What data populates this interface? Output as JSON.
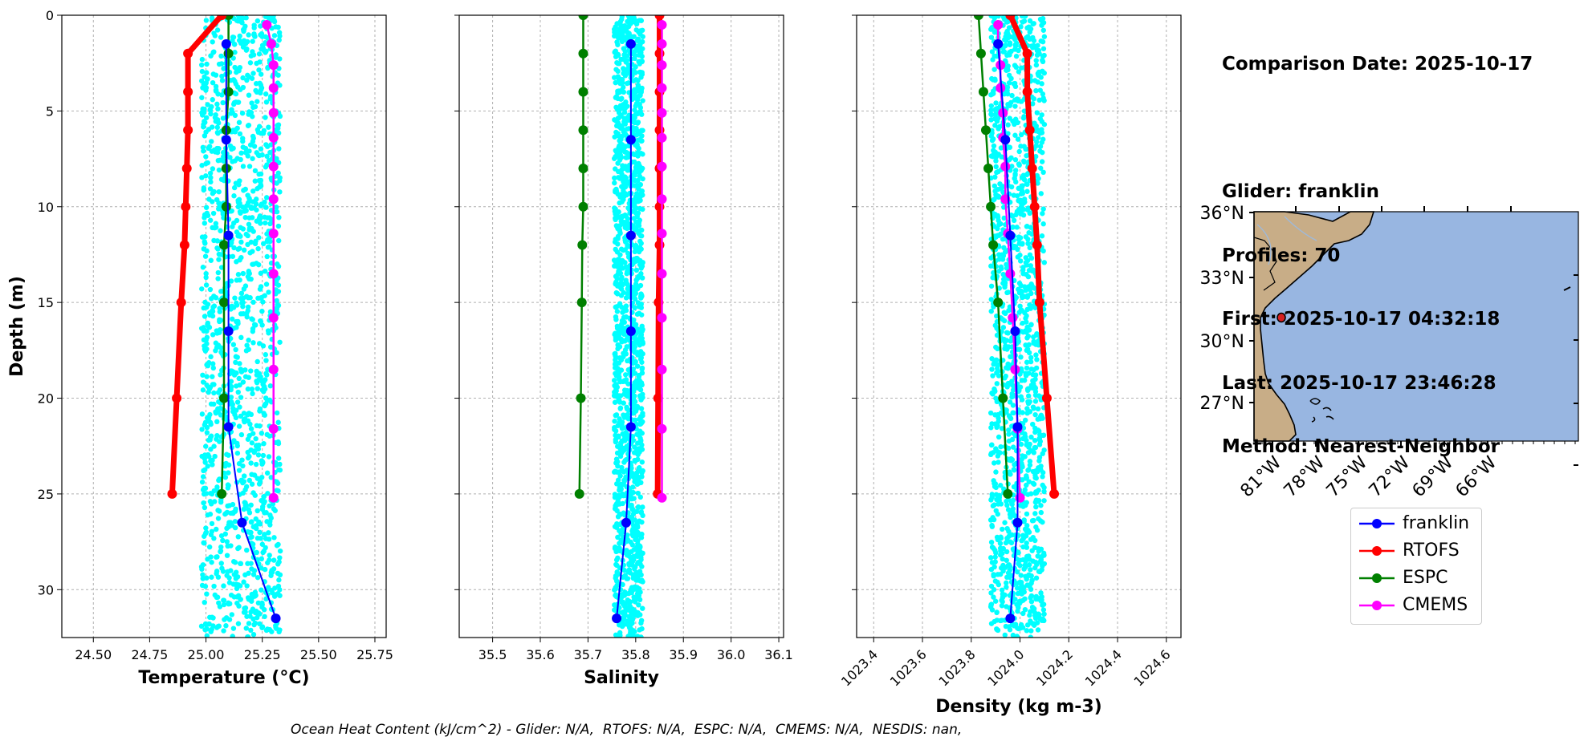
{
  "info": {
    "comparison_date": "Comparison Date: 2025-10-17",
    "glider": "Glider: franklin",
    "profiles": "Profiles: 70",
    "first": "First: 2025-10-17 04:32:18",
    "last": "Last: 2025-10-17 23:46:28",
    "method": "Method: Nearest-Neighbor"
  },
  "legend": [
    {
      "label": "franklin",
      "color": "#0000ff"
    },
    {
      "label": "RTOFS",
      "color": "#ff0000"
    },
    {
      "label": "ESPC",
      "color": "#008000"
    },
    {
      "label": "CMEMS",
      "color": "#ff00ff"
    }
  ],
  "footer": "Ocean Heat Content (kJ/cm^2) - Glider: N/A,  RTOFS: N/A,  ESPC: N/A,  CMEMS: N/A,  NESDIS: nan,",
  "colors": {
    "glider_scatter": "#00ffff",
    "land": "#c8ad87",
    "ocean": "#98b6e1"
  },
  "map": {
    "lat_ticks": [
      "36°N",
      "33°N",
      "30°N",
      "27°N"
    ],
    "lon_ticks": [
      "81°W",
      "78°W",
      "75°W",
      "72°W",
      "69°W",
      "66°W"
    ],
    "glider_position": {
      "lon": -80.4,
      "lat": 31.2
    }
  },
  "chart_data": [
    {
      "type": "line",
      "xlabel": "Temperature (°C)",
      "ylabel": "Depth (m)",
      "xlim": [
        24.36,
        25.8
      ],
      "ylim": [
        32.5,
        0
      ],
      "xticks": [
        "24.50",
        "24.75",
        "25.00",
        "25.25",
        "25.50",
        "25.75"
      ],
      "yticks": [
        "0",
        "5",
        "10",
        "15",
        "20",
        "25",
        "30"
      ],
      "scatter_range": {
        "xmin": 24.98,
        "xmax": 25.33,
        "ymax": 32.5
      },
      "series": [
        {
          "name": "franklin",
          "depth": [
            1.5,
            6.5,
            11.5,
            16.5,
            21.5,
            26.5,
            31.5
          ],
          "values": [
            25.09,
            25.09,
            25.1,
            25.1,
            25.1,
            25.16,
            25.31
          ]
        },
        {
          "name": "RTOFS",
          "depth": [
            0,
            2,
            4,
            6,
            8,
            10,
            12,
            15,
            20,
            25
          ],
          "values": [
            25.07,
            24.92,
            24.92,
            24.92,
            24.915,
            24.91,
            24.905,
            24.89,
            24.87,
            24.85
          ]
        },
        {
          "name": "ESPC",
          "depth": [
            0,
            2,
            4,
            6,
            8,
            10,
            12,
            15,
            20,
            25
          ],
          "values": [
            25.1,
            25.1,
            25.1,
            25.09,
            25.09,
            25.09,
            25.08,
            25.08,
            25.08,
            25.07
          ]
        },
        {
          "name": "CMEMS",
          "depth": [
            0.5,
            1.5,
            2.6,
            3.8,
            5.1,
            6.4,
            7.9,
            9.6,
            11.4,
            13.5,
            15.8,
            18.5,
            21.6,
            25.2
          ],
          "values": [
            25.27,
            25.29,
            25.3,
            25.3,
            25.3,
            25.3,
            25.3,
            25.3,
            25.3,
            25.3,
            25.3,
            25.3,
            25.3,
            25.3
          ]
        }
      ]
    },
    {
      "type": "line",
      "xlabel": "Salinity",
      "xlim": [
        35.43,
        36.11
      ],
      "ylim": [
        32.5,
        0
      ],
      "xticks": [
        "35.5",
        "35.6",
        "35.7",
        "35.8",
        "35.9",
        "36.0",
        "36.1"
      ],
      "scatter_range": {
        "xmin": 35.755,
        "xmax": 35.815,
        "ymax": 32.5
      },
      "series": [
        {
          "name": "franklin",
          "depth": [
            1.5,
            6.5,
            11.5,
            16.5,
            21.5,
            26.5,
            31.5
          ],
          "values": [
            35.79,
            35.79,
            35.79,
            35.79,
            35.79,
            35.78,
            35.76
          ]
        },
        {
          "name": "RTOFS",
          "depth": [
            0,
            2,
            4,
            6,
            8,
            10,
            12,
            15,
            20,
            25
          ],
          "values": [
            35.85,
            35.85,
            35.85,
            35.85,
            35.85,
            35.85,
            35.85,
            35.848,
            35.847,
            35.846
          ]
        },
        {
          "name": "ESPC",
          "depth": [
            0,
            2,
            4,
            6,
            8,
            10,
            12,
            15,
            20,
            25
          ],
          "values": [
            35.69,
            35.69,
            35.69,
            35.69,
            35.69,
            35.69,
            35.688,
            35.687,
            35.685,
            35.682
          ]
        },
        {
          "name": "CMEMS",
          "depth": [
            0.5,
            1.5,
            2.6,
            3.8,
            5.1,
            6.4,
            7.9,
            9.6,
            11.4,
            13.5,
            15.8,
            18.5,
            21.6,
            25.2
          ],
          "values": [
            35.855,
            35.855,
            35.855,
            35.855,
            35.855,
            35.855,
            35.855,
            35.855,
            35.855,
            35.855,
            35.855,
            35.855,
            35.855,
            35.855
          ]
        }
      ]
    },
    {
      "type": "line",
      "xlabel": "Density (kg m-3)",
      "xlim": [
        1023.33,
        1024.66
      ],
      "ylim": [
        32.5,
        0
      ],
      "xticks": [
        "1023.4",
        "1023.6",
        "1023.8",
        "1024.0",
        "1024.2",
        "1024.4",
        "1024.6"
      ],
      "scatter_range": {
        "xmin": 1023.88,
        "xmax": 1024.1,
        "ymax": 32.5
      },
      "series": [
        {
          "name": "franklin",
          "depth": [
            1.5,
            6.5,
            11.5,
            16.5,
            21.5,
            26.5,
            31.5
          ],
          "values": [
            1023.91,
            1023.94,
            1023.96,
            1023.98,
            1023.99,
            1023.99,
            1023.96
          ]
        },
        {
          "name": "RTOFS",
          "depth": [
            0,
            2,
            4,
            6,
            8,
            10,
            12,
            15,
            20,
            25
          ],
          "values": [
            1023.96,
            1024.03,
            1024.03,
            1024.04,
            1024.05,
            1024.06,
            1024.07,
            1024.08,
            1024.11,
            1024.14
          ]
        },
        {
          "name": "ESPC",
          "depth": [
            0,
            2,
            4,
            6,
            8,
            10,
            12,
            15,
            20,
            25
          ],
          "values": [
            1023.83,
            1023.84,
            1023.85,
            1023.86,
            1023.87,
            1023.88,
            1023.89,
            1023.91,
            1023.93,
            1023.95
          ]
        },
        {
          "name": "CMEMS",
          "depth": [
            0.5,
            1.5,
            2.6,
            3.8,
            5.1,
            6.4,
            7.9,
            9.6,
            11.4,
            13.5,
            15.8,
            18.5,
            21.6,
            25.2
          ],
          "values": [
            1023.91,
            1023.91,
            1023.92,
            1023.92,
            1023.93,
            1023.93,
            1023.94,
            1023.94,
            1023.95,
            1023.96,
            1023.97,
            1023.98,
            1023.99,
            1024.0
          ]
        }
      ]
    }
  ]
}
